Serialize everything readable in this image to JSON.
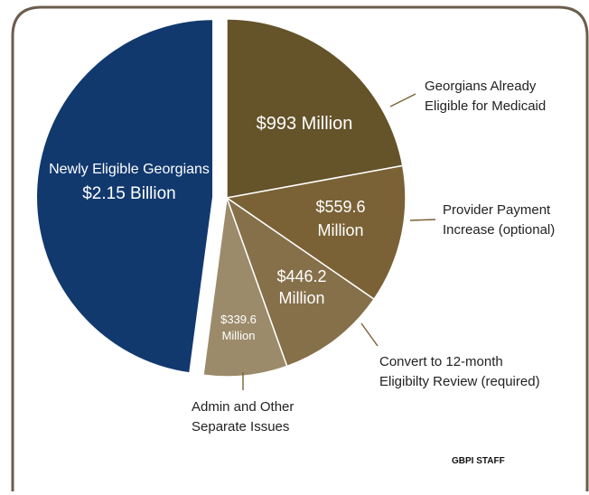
{
  "chart_data": {
    "type": "pie",
    "title": "",
    "credit": "GBPI STAFF",
    "slices": [
      {
        "category": "Georgians Already Eligible for Medicaid",
        "value_label": [
          "$993 Million"
        ],
        "value": 993,
        "color": "#65532a",
        "exploded": false,
        "annotation": [
          "Georgians Already",
          "Eligible for Medicaid"
        ]
      },
      {
        "category": "Provider Payment Increase (optional)",
        "value_label": [
          "$559.6",
          "Million"
        ],
        "value": 559.6,
        "color": "#7a6236",
        "exploded": false,
        "annotation": [
          "Provider Payment",
          "Increase (optional)"
        ]
      },
      {
        "category": "Convert to 12-month Eligibilty Review (required)",
        "value_label": [
          "$446.2",
          "Million"
        ],
        "value": 446.2,
        "color": "#86704a",
        "exploded": false,
        "annotation": [
          "Convert to 12-month",
          "Eligibilty Review (required)"
        ]
      },
      {
        "category": "Admin and Other Separate Issues",
        "value_label": [
          "$339.6",
          "Million"
        ],
        "value": 339.6,
        "color": "#9c8b6a",
        "exploded": false,
        "annotation": [
          "Admin and Other",
          "Separate Issues"
        ]
      },
      {
        "category": "Newly Eligible Georgians",
        "value_label": [
          "Newly Eligible Georgians",
          "$2.15 Billion"
        ],
        "value": 2150,
        "color": "#11396e",
        "exploded": true,
        "annotation": []
      }
    ]
  }
}
